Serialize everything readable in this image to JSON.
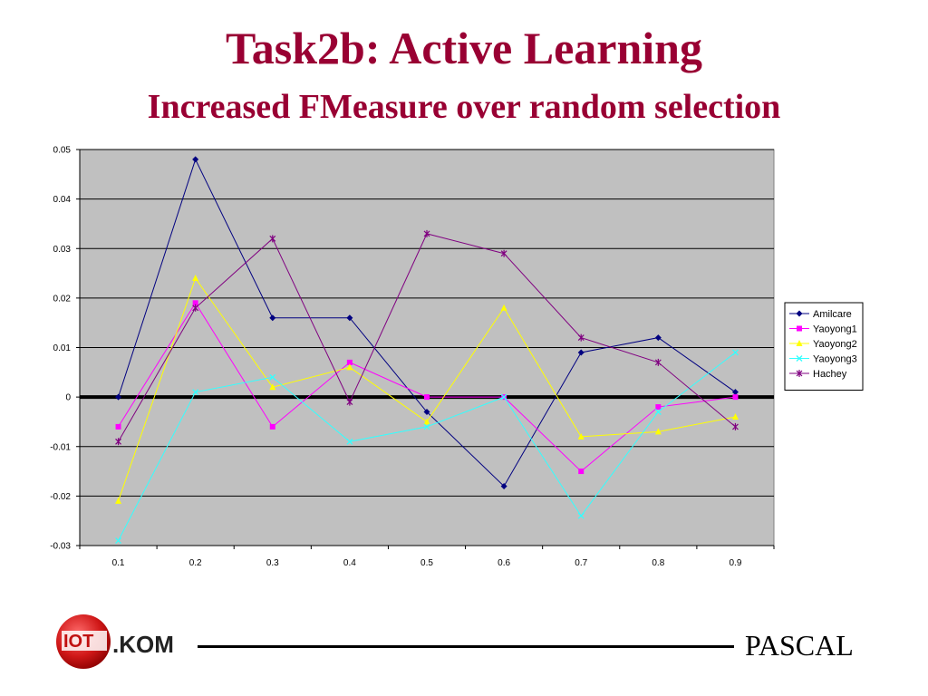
{
  "slide": {
    "title": "Task2b: Active Learning",
    "subtitle": "Increased FMeasure over random selection",
    "footer_right": "PASCAL",
    "logo_text": ".KOM"
  },
  "chart_data": {
    "type": "line",
    "title": "",
    "xlabel": "",
    "ylabel": "",
    "categories": [
      "0.1",
      "0.2",
      "0.3",
      "0.4",
      "0.5",
      "0.6",
      "0.7",
      "0.8",
      "0.9"
    ],
    "ylim": [
      -0.03,
      0.05
    ],
    "yticks": [
      0.05,
      0.04,
      0.03,
      0.02,
      0.01,
      0,
      -0.01,
      -0.02,
      -0.03
    ],
    "ytick_labels": [
      "0.05",
      "0.04",
      "0.03",
      "0.02",
      "0.01",
      "0",
      "-0.01",
      "-0.02",
      "-0.03"
    ],
    "grid": true,
    "plot_background": "#c0c0c0",
    "legend_position": "right",
    "series": [
      {
        "name": "Amilcare",
        "color": "#000080",
        "marker": "diamond",
        "values": [
          0,
          0.048,
          0.016,
          0.016,
          -0.003,
          -0.018,
          0.009,
          0.012,
          0.001
        ]
      },
      {
        "name": "Yaoyong1",
        "color": "#ff00ff",
        "marker": "square",
        "values": [
          -0.006,
          0.019,
          -0.006,
          0.007,
          0,
          0,
          -0.015,
          -0.002,
          0
        ]
      },
      {
        "name": "Yaoyong2",
        "color": "#ffff00",
        "marker": "triangle",
        "values": [
          -0.021,
          0.024,
          0.002,
          0.006,
          -0.005,
          0.018,
          -0.008,
          -0.007,
          -0.004
        ]
      },
      {
        "name": "Yaoyong3",
        "color": "#33ffff",
        "marker": "x",
        "values": [
          -0.029,
          0.001,
          0.004,
          -0.009,
          -0.006,
          0,
          -0.024,
          -0.003,
          0.009
        ]
      },
      {
        "name": "Hachey",
        "color": "#800080",
        "marker": "star",
        "values": [
          -0.009,
          0.018,
          0.032,
          -0.001,
          0.033,
          0.029,
          0.012,
          0.007,
          -0.006
        ]
      }
    ]
  }
}
